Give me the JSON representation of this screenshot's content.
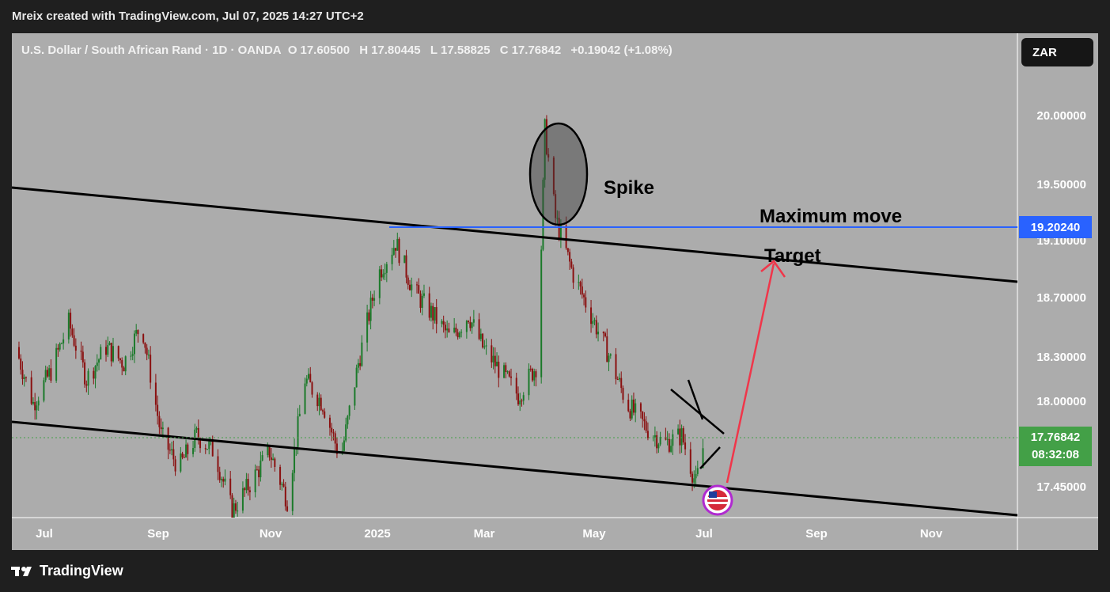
{
  "header": {
    "credit": "Mreix created with TradingView.com, Jul 07, 2025 14:27 UTC+2"
  },
  "symbol": {
    "name": "U.S. Dollar / South African Rand · 1D · OANDA",
    "open_label": "O",
    "open": "17.60500",
    "high_label": "H",
    "high": "17.80445",
    "low_label": "L",
    "low": "17.58825",
    "close_label": "C",
    "close": "17.76842",
    "change": "+0.19042 (+1.08%)"
  },
  "currency_button": "ZAR",
  "price_axis": [
    "20.00000",
    "19.50000",
    "19.10000",
    "18.70000",
    "18.30000",
    "18.00000",
    "17.45000"
  ],
  "time_axis": [
    "Jul",
    "Sep",
    "Nov",
    "2025",
    "Mar",
    "May",
    "Jul",
    "Sep",
    "Nov"
  ],
  "tags": {
    "level": "19.20240",
    "last_price": "17.76842",
    "countdown": "08:32:08"
  },
  "annotations": {
    "spike": "Spike",
    "max_move": "Maximum move",
    "target": "Target"
  },
  "footer": {
    "brand": "TradingView"
  },
  "colors": {
    "up": "#1b7a2a",
    "down": "#8a1010",
    "level": "#2962ff",
    "arrow": "#f0364a",
    "background": "#acacac"
  },
  "chart_data": {
    "type": "candlestick",
    "ylim": [
      17.34,
      20.35
    ],
    "x_range": [
      "2024-06-13",
      "2025-12-31"
    ],
    "closes": [
      {
        "date": "2024-06-15",
        "close": 18.4
      },
      {
        "date": "2024-06-25",
        "close": 18.05
      },
      {
        "date": "2024-07-05",
        "close": 18.25
      },
      {
        "date": "2024-07-15",
        "close": 18.55
      },
      {
        "date": "2024-07-25",
        "close": 18.2
      },
      {
        "date": "2024-08-05",
        "close": 18.4
      },
      {
        "date": "2024-08-15",
        "close": 18.3
      },
      {
        "date": "2024-08-25",
        "close": 18.55
      },
      {
        "date": "2024-09-05",
        "close": 17.85
      },
      {
        "date": "2024-09-15",
        "close": 17.65
      },
      {
        "date": "2024-09-25",
        "close": 17.85
      },
      {
        "date": "2024-10-05",
        "close": 17.75
      },
      {
        "date": "2024-10-15",
        "close": 17.38
      },
      {
        "date": "2024-10-25",
        "close": 17.55
      },
      {
        "date": "2024-11-05",
        "close": 17.75
      },
      {
        "date": "2024-11-15",
        "close": 17.45
      },
      {
        "date": "2024-11-25",
        "close": 18.2
      },
      {
        "date": "2024-12-05",
        "close": 18.05
      },
      {
        "date": "2024-12-15",
        "close": 17.7
      },
      {
        "date": "2024-12-25",
        "close": 18.3
      },
      {
        "date": "2025-01-05",
        "close": 18.85
      },
      {
        "date": "2025-01-15",
        "close": 19.05
      },
      {
        "date": "2025-01-25",
        "close": 18.75
      },
      {
        "date": "2025-02-05",
        "close": 18.6
      },
      {
        "date": "2025-02-15",
        "close": 18.45
      },
      {
        "date": "2025-02-25",
        "close": 18.6
      },
      {
        "date": "2025-03-05",
        "close": 18.4
      },
      {
        "date": "2025-03-15",
        "close": 18.25
      },
      {
        "date": "2025-03-25",
        "close": 18.1
      },
      {
        "date": "2025-04-05",
        "close": 18.3
      },
      {
        "date": "2025-04-09",
        "close": 19.75
      },
      {
        "date": "2025-04-15",
        "close": 19.2
      },
      {
        "date": "2025-04-25",
        "close": 18.85
      },
      {
        "date": "2025-05-05",
        "close": 18.6
      },
      {
        "date": "2025-05-15",
        "close": 18.35
      },
      {
        "date": "2025-05-25",
        "close": 18.05
      },
      {
        "date": "2025-06-05",
        "close": 17.9
      },
      {
        "date": "2025-06-15",
        "close": 17.8
      },
      {
        "date": "2025-06-25",
        "close": 17.85
      },
      {
        "date": "2025-07-03",
        "close": 17.55
      },
      {
        "date": "2025-07-07",
        "close": 17.77
      }
    ]
  }
}
